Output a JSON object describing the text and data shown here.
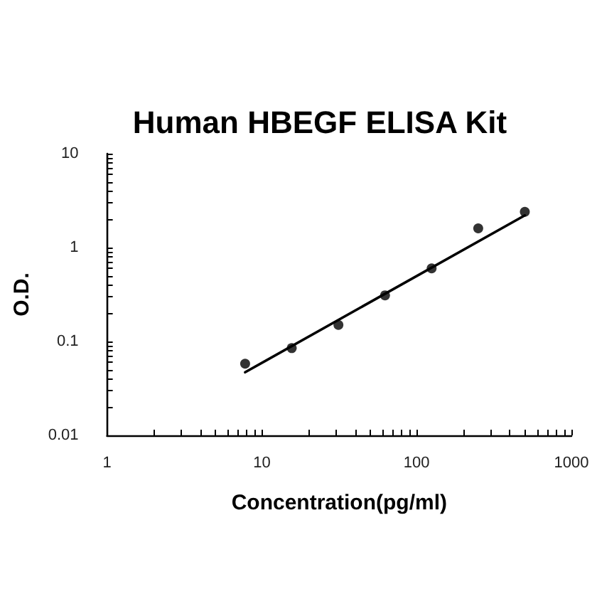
{
  "chart_data": {
    "type": "scatter",
    "title": "Human HBEGF ELISA Kit",
    "xlabel": "Concentration(pg/ml)",
    "ylabel": "O.D.",
    "log": "xy",
    "grid": false,
    "marker": "circle",
    "xlim": [
      1,
      1000
    ],
    "xticks": [
      1,
      {
        "value": 2,
        "label": null
      },
      {
        "value": 3,
        "label": null
      },
      {
        "value": 4,
        "label": null
      },
      {
        "value": 5,
        "label": null
      },
      {
        "value": 6,
        "label": null
      },
      {
        "value": 7,
        "label": null
      },
      {
        "value": 8,
        "label": null
      },
      {
        "value": 9,
        "label": null
      },
      10,
      {
        "value": 20,
        "label": null
      },
      {
        "value": 30,
        "label": null
      },
      {
        "value": 40,
        "label": null
      },
      {
        "value": 50,
        "label": null
      },
      {
        "value": 60,
        "label": null
      },
      {
        "value": 70,
        "label": null
      },
      {
        "value": 80,
        "label": null
      },
      {
        "value": 90,
        "label": null
      },
      100,
      {
        "value": 200,
        "label": null
      },
      {
        "value": 300,
        "label": null
      },
      {
        "value": 400,
        "label": null
      },
      {
        "value": 500,
        "label": null
      },
      {
        "value": 600,
        "label": null
      },
      {
        "value": 700,
        "label": null
      },
      {
        "value": 800,
        "label": null
      },
      {
        "value": 900,
        "label": null
      },
      1000
    ],
    "ylim": [
      0.01,
      10
    ],
    "yticks": [
      0.01,
      {
        "value": 0.02,
        "label": null
      },
      {
        "value": 0.03,
        "label": null
      },
      {
        "value": 0.04,
        "label": null
      },
      {
        "value": 0.05,
        "label": null
      },
      {
        "value": 0.06,
        "label": null
      },
      {
        "value": 0.07,
        "label": null
      },
      {
        "value": 0.08,
        "label": null
      },
      {
        "value": 0.09,
        "label": null
      },
      0.1,
      {
        "value": 0.2,
        "label": null
      },
      {
        "value": 0.3,
        "label": null
      },
      {
        "value": 0.4,
        "label": null
      },
      {
        "value": 0.5,
        "label": null
      },
      {
        "value": 0.6,
        "label": null
      },
      {
        "value": 0.7,
        "label": null
      },
      {
        "value": 0.8,
        "label": null
      },
      {
        "value": 0.9,
        "label": null
      },
      1,
      {
        "value": 2,
        "label": null
      },
      {
        "value": 3,
        "label": null
      },
      {
        "value": 4,
        "label": null
      },
      {
        "value": 5,
        "label": null
      },
      {
        "value": 6,
        "label": null
      },
      {
        "value": 7,
        "label": null
      },
      {
        "value": 8,
        "label": null
      },
      {
        "value": 9,
        "label": null
      },
      10
    ],
    "series": [
      {
        "color": "#000000",
        "x": [
          7.8,
          15.6,
          31.25,
          62.5,
          125,
          250,
          500
        ],
        "values": [
          0.058,
          0.085,
          0.15,
          0.31,
          0.6,
          1.6,
          2.4
        ]
      },
      {
        "type": "line",
        "color": "#000000",
        "marker": "none",
        "line_style": "solid",
        "x": [
          7.8,
          500
        ],
        "values": [
          0.047,
          2.2
        ]
      }
    ]
  }
}
